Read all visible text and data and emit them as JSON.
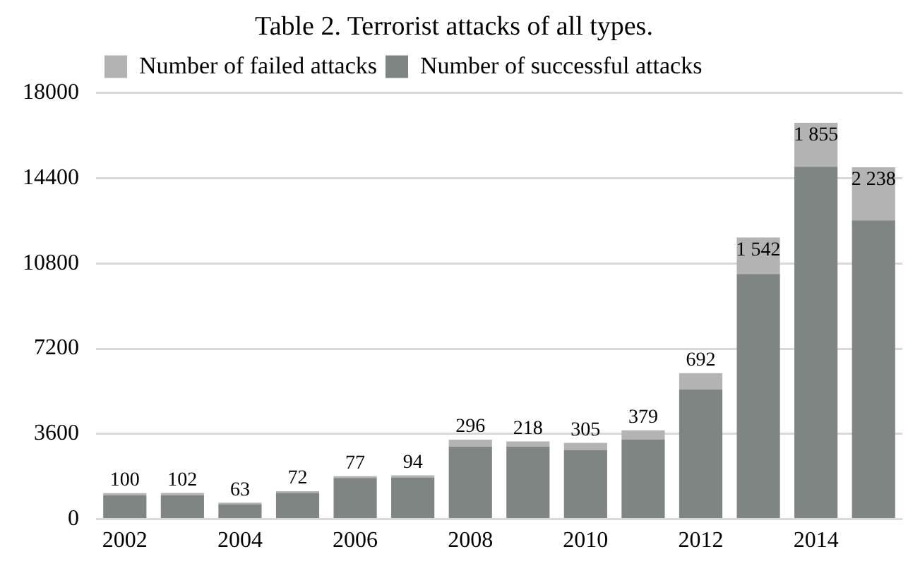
{
  "chart_data": {
    "type": "bar",
    "title": "Table 2. Terrorist attacks of all types.",
    "stacked": true,
    "categories": [
      "2002",
      null,
      "2004",
      null,
      "2006",
      null,
      "2008",
      null,
      "2010",
      null,
      "2012",
      null,
      "2014",
      null
    ],
    "series": [
      {
        "name": "Number of successful attacks",
        "color": "#7f8582",
        "values": [
          1000,
          1000,
          630,
          1110,
          1740,
          1760,
          3060,
          3060,
          2920,
          3370,
          5470,
          10350,
          14880,
          12620
        ]
      },
      {
        "name": "Number of failed attacks",
        "color": "#b3b3b3",
        "values": [
          100,
          102,
          63,
          72,
          77,
          94,
          296,
          218,
          305,
          379,
          692,
          1542,
          1855,
          2238
        ],
        "value_labels": [
          "100",
          "102",
          "63",
          "72",
          "77",
          "94",
          "296",
          "218",
          "305",
          "379",
          "692",
          "1 542",
          "1 855",
          "2 238"
        ]
      }
    ],
    "ylim": [
      0,
      18000
    ],
    "yticks": [
      0,
      3600,
      7200,
      10800,
      14400,
      18000
    ],
    "grid": "y",
    "legend": "top left"
  }
}
